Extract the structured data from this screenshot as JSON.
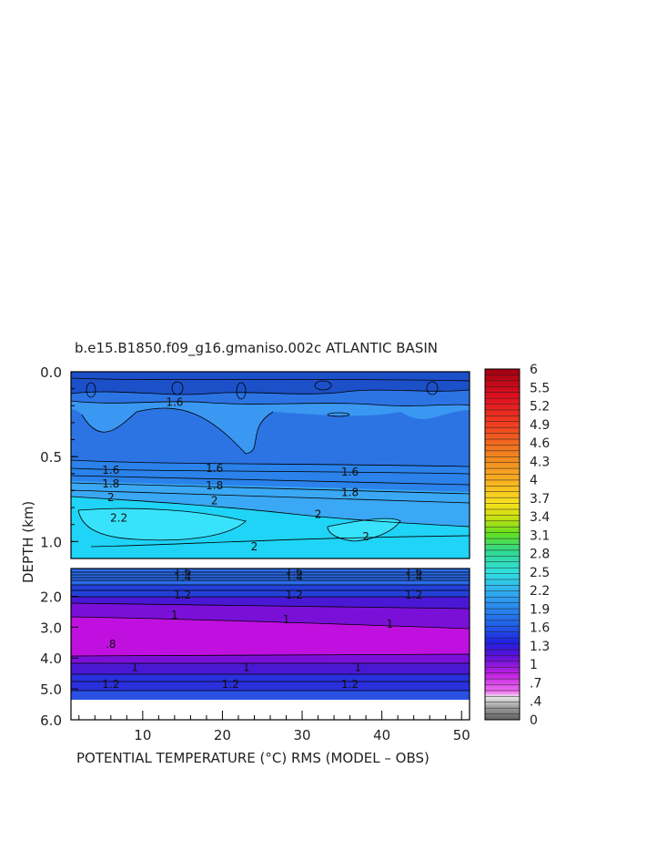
{
  "chart_data": {
    "type": "heatmap",
    "title": "b.e15.B1850.f09_g16.gmaniso.002c ATLANTIC BASIN",
    "xlabel": "POTENTIAL TEMPERATURE (°C) RMS (MODEL – OBS)",
    "ylabel": "DEPTH (km)",
    "xlim": [
      1,
      51
    ],
    "x_ticks": [
      "10",
      "20",
      "30",
      "40",
      "50"
    ],
    "upper_panel": {
      "ylim": [
        0.0,
        1.1
      ],
      "y_ticks": [
        "0.0",
        "0.5",
        "1.0"
      ]
    },
    "lower_panel": {
      "ylim": [
        1.1,
        6.0
      ],
      "y_ticks": [
        "2.0",
        "3.0",
        "4.0",
        "5.0",
        "6.0"
      ]
    },
    "contour_labels": {
      "upper": [
        {
          "text": "1.6",
          "x": 14,
          "depth": 0.18
        },
        {
          "text": "1.6",
          "x": 6,
          "depth": 0.58
        },
        {
          "text": "1.6",
          "x": 19,
          "depth": 0.57
        },
        {
          "text": "1.6",
          "x": 36,
          "depth": 0.59
        },
        {
          "text": "1.8",
          "x": 6,
          "depth": 0.66
        },
        {
          "text": "1.8",
          "x": 19,
          "depth": 0.67
        },
        {
          "text": "1.8",
          "x": 36,
          "depth": 0.71
        },
        {
          "text": "2",
          "x": 6,
          "depth": 0.74
        },
        {
          "text": "2",
          "x": 19,
          "depth": 0.76
        },
        {
          "text": "2",
          "x": 32,
          "depth": 0.84
        },
        {
          "text": "2",
          "x": 38,
          "depth": 0.97
        },
        {
          "text": "2",
          "x": 24,
          "depth": 1.03
        },
        {
          "text": "2.2",
          "x": 7,
          "depth": 0.86
        }
      ],
      "lower": [
        {
          "text": "1.6",
          "x": 15,
          "depth": 1.2
        },
        {
          "text": "1.6",
          "x": 29,
          "depth": 1.2
        },
        {
          "text": "1.6",
          "x": 44,
          "depth": 1.2
        },
        {
          "text": "1.4",
          "x": 15,
          "depth": 1.38
        },
        {
          "text": "1.4",
          "x": 29,
          "depth": 1.38
        },
        {
          "text": "1.4",
          "x": 44,
          "depth": 1.38
        },
        {
          "text": "1.2",
          "x": 15,
          "depth": 1.95
        },
        {
          "text": "1.2",
          "x": 29,
          "depth": 1.95
        },
        {
          "text": "1.2",
          "x": 44,
          "depth": 1.95
        },
        {
          "text": "1",
          "x": 14,
          "depth": 2.6
        },
        {
          "text": "1",
          "x": 28,
          "depth": 2.75
        },
        {
          "text": "1",
          "x": 41,
          "depth": 2.9
        },
        {
          "text": ".8",
          "x": 6,
          "depth": 3.55
        },
        {
          "text": "1",
          "x": 9,
          "depth": 4.3
        },
        {
          "text": "1",
          "x": 23,
          "depth": 4.3
        },
        {
          "text": "1",
          "x": 37,
          "depth": 4.3
        },
        {
          "text": "1.2",
          "x": 6,
          "depth": 4.85
        },
        {
          "text": "1.2",
          "x": 21,
          "depth": 4.85
        },
        {
          "text": "1.2",
          "x": 36,
          "depth": 4.85
        }
      ]
    },
    "colorbar": {
      "range": [
        0,
        6
      ],
      "labels": [
        "6",
        "5.5",
        "5.2",
        "4.9",
        "4.6",
        "4.3",
        "4",
        "3.7",
        "3.4",
        "3.1",
        "2.8",
        "2.5",
        "2.2",
        "1.9",
        "1.6",
        "1.3",
        "1",
        ".7",
        ".4",
        "0"
      ]
    },
    "fill_colors": {
      "deep_blue_top": "#1c50c8",
      "mid_blue": "#2c74e4",
      "light_blue": "#3a98f2",
      "cyan": "#1fd4f6",
      "magenta": "#c010e0",
      "purple": "#7a10d8",
      "violet": "#4a18d4"
    }
  }
}
